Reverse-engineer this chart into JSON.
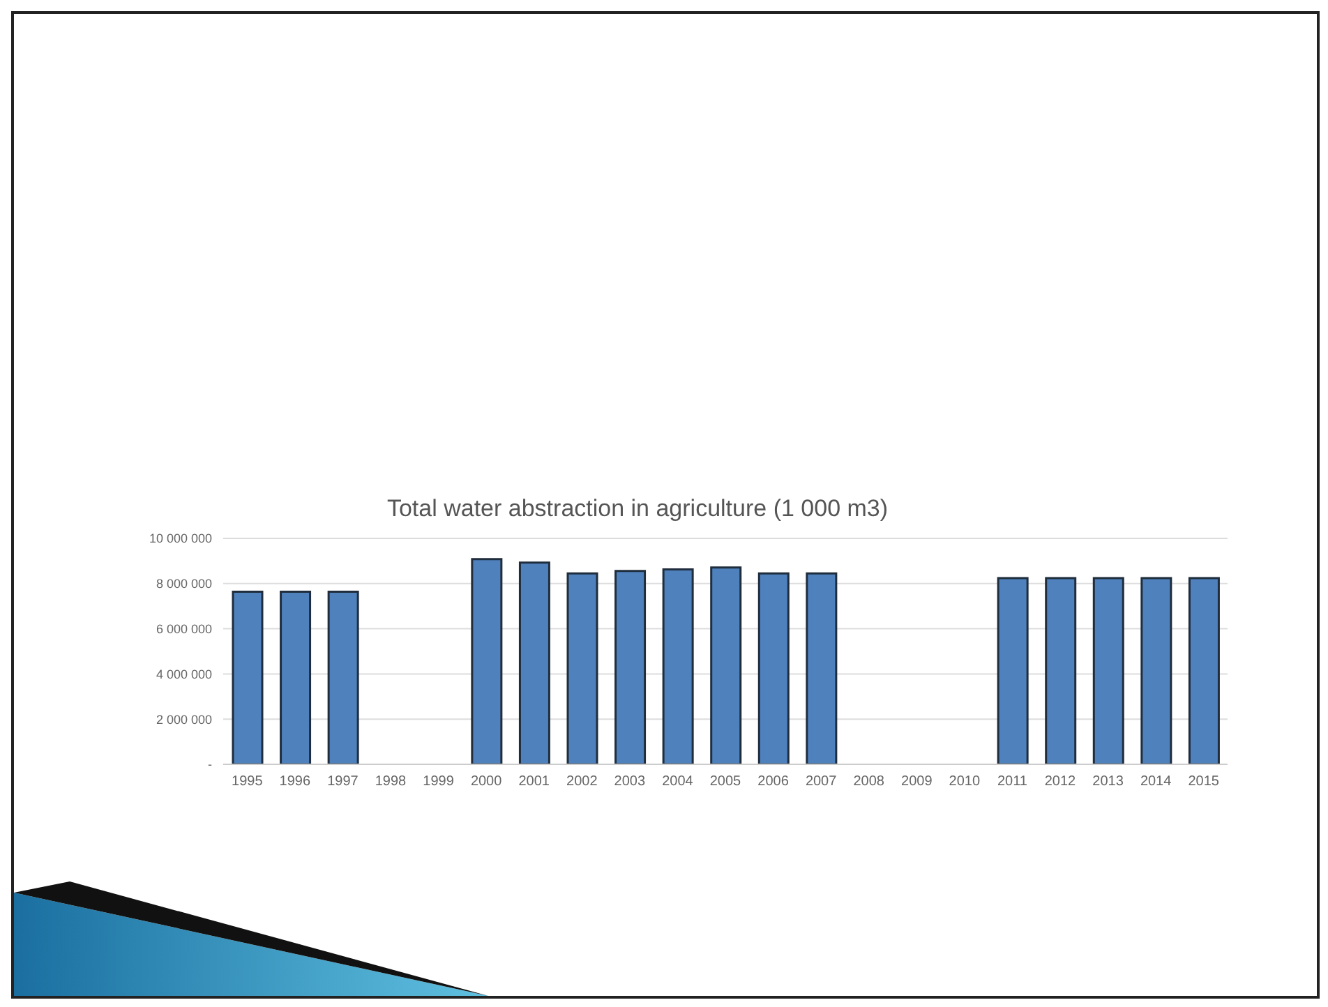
{
  "chart_data": {
    "type": "bar",
    "title": "Total water abstraction in agriculture (1 000 m3)",
    "categories": [
      "1995",
      "1996",
      "1997",
      "1998",
      "1999",
      "2000",
      "2001",
      "2002",
      "2003",
      "2004",
      "2005",
      "2006",
      "2007",
      "2008",
      "2009",
      "2010",
      "2011",
      "2012",
      "2013",
      "2014",
      "2015"
    ],
    "values": [
      7640000,
      7640000,
      7640000,
      null,
      null,
      9080000,
      8930000,
      8450000,
      8560000,
      8630000,
      8710000,
      8450000,
      8450000,
      null,
      null,
      null,
      8240000,
      8240000,
      8240000,
      8240000,
      8240000
    ],
    "color": "#4f81bd",
    "ylim": [
      0,
      10000000
    ],
    "yticks": [
      {
        "value": 0,
        "label": "-"
      },
      {
        "value": 2000000,
        "label": "2 000 000"
      },
      {
        "value": 4000000,
        "label": "4 000 000"
      },
      {
        "value": 6000000,
        "label": "6 000 000"
      },
      {
        "value": 8000000,
        "label": "8 000 000"
      },
      {
        "value": 10000000,
        "label": "10 000 000"
      }
    ],
    "grid": "y"
  }
}
